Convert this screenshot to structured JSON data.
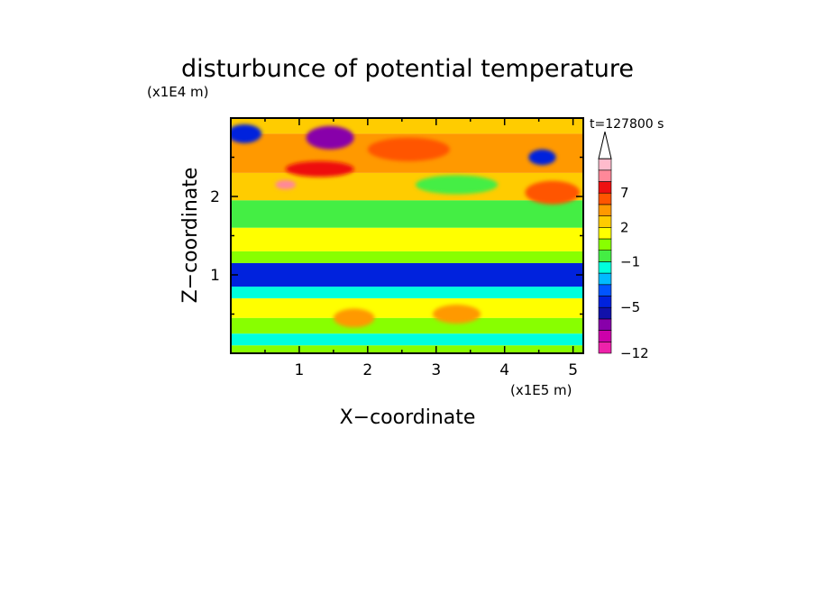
{
  "chart_data": {
    "type": "heatmap",
    "title": "disturbunce of potential temperature",
    "xlabel": "X−coordinate",
    "ylabel": "Z−coordinate",
    "x_unit": "(x1E5 m)",
    "y_unit": "(x1E4 m)",
    "time_label": "t=127800 s",
    "x_ticks": [
      "1",
      "2",
      "3",
      "4",
      "5"
    ],
    "y_ticks": [
      "1",
      "2"
    ],
    "xlim": [
      0,
      5.15
    ],
    "ylim": [
      0,
      3.0
    ],
    "colorbar": {
      "levels": [
        -12,
        -10,
        -8,
        -6,
        -5,
        -4,
        -3,
        -2,
        -1,
        0,
        1,
        2,
        3,
        5,
        7,
        9,
        11
      ],
      "tick_labels": [
        "−12",
        "−5",
        "−1",
        "2",
        "7"
      ],
      "tick_values": [
        -12,
        -5,
        -1,
        2,
        7
      ],
      "colors": [
        "#ee22aa",
        "#cc00aa",
        "#8800aa",
        "#1111aa",
        "#0022dd",
        "#0055ff",
        "#00bbff",
        "#00ffdd",
        "#44ee44",
        "#88ff00",
        "#ffff00",
        "#ffcc00",
        "#ff9900",
        "#ff5500",
        "#ee1111",
        "#ff8899",
        "#ffbbcc"
      ],
      "extend": "max"
    },
    "bands": [
      {
        "z": [
          2.8,
          3.0
        ],
        "value": 2.5,
        "label": "top layer warm with cold cells near x=0.1 and x=4.5"
      },
      {
        "z": [
          2.3,
          2.8
        ],
        "value": 3.5,
        "label": "warm upper band"
      },
      {
        "z": [
          1.95,
          2.3
        ],
        "value": 2.0,
        "label": "mixed warm/cold upper band"
      },
      {
        "z": [
          1.6,
          1.95
        ],
        "value": -0.5,
        "label": "cyan band"
      },
      {
        "z": [
          1.3,
          1.6
        ],
        "value": 1.0,
        "label": "yellow-green band"
      },
      {
        "z": [
          1.15,
          1.3
        ],
        "value": 0.0,
        "label": "green band"
      },
      {
        "z": [
          0.85,
          1.15
        ],
        "value": -5.0,
        "label": "strong cold band"
      },
      {
        "z": [
          0.7,
          0.85
        ],
        "value": -2.0,
        "label": "cyan band"
      },
      {
        "z": [
          0.45,
          0.7
        ],
        "value": 1.5,
        "label": "warm lower band"
      },
      {
        "z": [
          0.25,
          0.45
        ],
        "value": 0.5,
        "label": "green band"
      },
      {
        "z": [
          0.1,
          0.25
        ],
        "value": -2.0,
        "label": "cold near-surface band"
      },
      {
        "z": [
          0.0,
          0.1
        ],
        "value": 0.0,
        "label": "surface band"
      }
    ],
    "features": [
      {
        "x": 0.2,
        "z": 2.8,
        "value": -5,
        "rx": 0.25,
        "rz": 0.12
      },
      {
        "x": 1.45,
        "z": 2.75,
        "value": -8,
        "rx": 0.35,
        "rz": 0.15
      },
      {
        "x": 4.55,
        "z": 2.5,
        "value": -5,
        "rx": 0.2,
        "rz": 0.1
      },
      {
        "x": 2.6,
        "z": 2.6,
        "value": 5,
        "rx": 0.6,
        "rz": 0.15
      },
      {
        "x": 1.3,
        "z": 2.35,
        "value": 7,
        "rx": 0.5,
        "rz": 0.1
      },
      {
        "x": 0.8,
        "z": 2.15,
        "value": 9,
        "rx": 0.15,
        "rz": 0.06
      },
      {
        "x": 3.3,
        "z": 2.15,
        "value": -1,
        "rx": 0.6,
        "rz": 0.12
      },
      {
        "x": 4.7,
        "z": 2.05,
        "value": 5,
        "rx": 0.4,
        "rz": 0.15
      },
      {
        "x": 1.8,
        "z": 0.45,
        "value": 3,
        "rx": 0.3,
        "rz": 0.12
      },
      {
        "x": 3.3,
        "z": 0.5,
        "value": 3,
        "rx": 0.35,
        "rz": 0.12
      }
    ]
  }
}
